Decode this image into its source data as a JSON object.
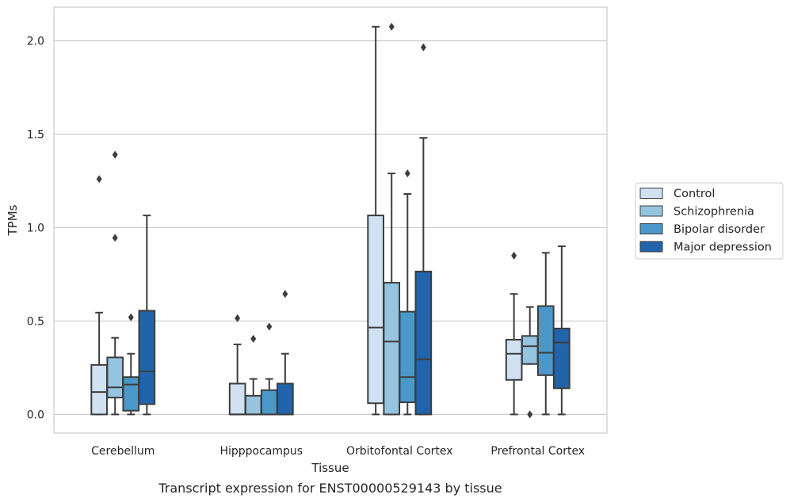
{
  "chart_data": {
    "type": "boxplot",
    "title": "",
    "caption": "Transcript expression for ENST00000529143 by tissue",
    "xlabel": "Tissue",
    "ylabel": "TPMs",
    "ylim": [
      -0.1,
      2.18
    ],
    "yticks": [
      0.0,
      0.5,
      1.0,
      1.5,
      2.0
    ],
    "ytick_labels": [
      "0.0",
      "0.5",
      "1.0",
      "1.5",
      "2.0"
    ],
    "grid": "horizontal",
    "legend_position": "right",
    "categories": [
      "Cerebellum",
      "Hipppocampus",
      "Orbitofontal Cortex",
      "Prefrontal Cortex"
    ],
    "series": [
      {
        "name": "Control",
        "color": "#d0e1f2",
        "boxes": [
          {
            "whislo": 0.0,
            "q1": 0.0,
            "med": 0.12,
            "q3": 0.265,
            "whishi": 0.545,
            "fliers": [
              1.26
            ]
          },
          {
            "whislo": 0.0,
            "q1": 0.0,
            "med": 0.0,
            "q3": 0.165,
            "whishi": 0.375,
            "fliers": [
              0.515
            ]
          },
          {
            "whislo": 0.0,
            "q1": 0.06,
            "med": 0.465,
            "q3": 1.065,
            "whishi": 2.075,
            "fliers": []
          },
          {
            "whislo": 0.0,
            "q1": 0.185,
            "med": 0.325,
            "q3": 0.4,
            "whishi": 0.645,
            "fliers": [
              0.85
            ]
          }
        ]
      },
      {
        "name": "Schizophrenia",
        "color": "#94c4df",
        "boxes": [
          {
            "whislo": 0.0,
            "q1": 0.09,
            "med": 0.145,
            "q3": 0.305,
            "whishi": 0.41,
            "fliers": [
              1.39,
              0.945
            ]
          },
          {
            "whislo": 0.0,
            "q1": 0.0,
            "med": 0.0,
            "q3": 0.1,
            "whishi": 0.19,
            "fliers": [
              0.405
            ]
          },
          {
            "whislo": 0.0,
            "q1": 0.0,
            "med": 0.39,
            "q3": 0.705,
            "whishi": 1.29,
            "fliers": [
              2.075
            ]
          },
          {
            "whislo": 0.27,
            "q1": 0.27,
            "med": 0.365,
            "q3": 0.42,
            "whishi": 0.575,
            "fliers": [
              0.0
            ]
          }
        ]
      },
      {
        "name": "Bipolar disorder",
        "color": "#4a98c9",
        "boxes": [
          {
            "whislo": 0.0,
            "q1": 0.02,
            "med": 0.16,
            "q3": 0.2,
            "whishi": 0.325,
            "fliers": [
              0.52
            ]
          },
          {
            "whislo": 0.0,
            "q1": 0.0,
            "med": 0.0,
            "q3": 0.13,
            "whishi": 0.19,
            "fliers": [
              0.47
            ]
          },
          {
            "whislo": 0.0,
            "q1": 0.065,
            "med": 0.2,
            "q3": 0.55,
            "whishi": 1.18,
            "fliers": [
              1.29
            ]
          },
          {
            "whislo": 0.0,
            "q1": 0.21,
            "med": 0.33,
            "q3": 0.58,
            "whishi": 0.865,
            "fliers": []
          }
        ]
      },
      {
        "name": "Major depression",
        "color": "#2164ab",
        "boxes": [
          {
            "whislo": 0.0,
            "q1": 0.055,
            "med": 0.23,
            "q3": 0.555,
            "whishi": 1.065,
            "fliers": []
          },
          {
            "whislo": 0.0,
            "q1": 0.0,
            "med": 0.0,
            "q3": 0.165,
            "whishi": 0.325,
            "fliers": [
              0.645
            ]
          },
          {
            "whislo": 0.0,
            "q1": 0.0,
            "med": 0.295,
            "q3": 0.765,
            "whishi": 1.48,
            "fliers": [
              1.965
            ]
          },
          {
            "whislo": 0.0,
            "q1": 0.14,
            "med": 0.385,
            "q3": 0.46,
            "whishi": 0.9,
            "fliers": []
          }
        ]
      }
    ]
  }
}
